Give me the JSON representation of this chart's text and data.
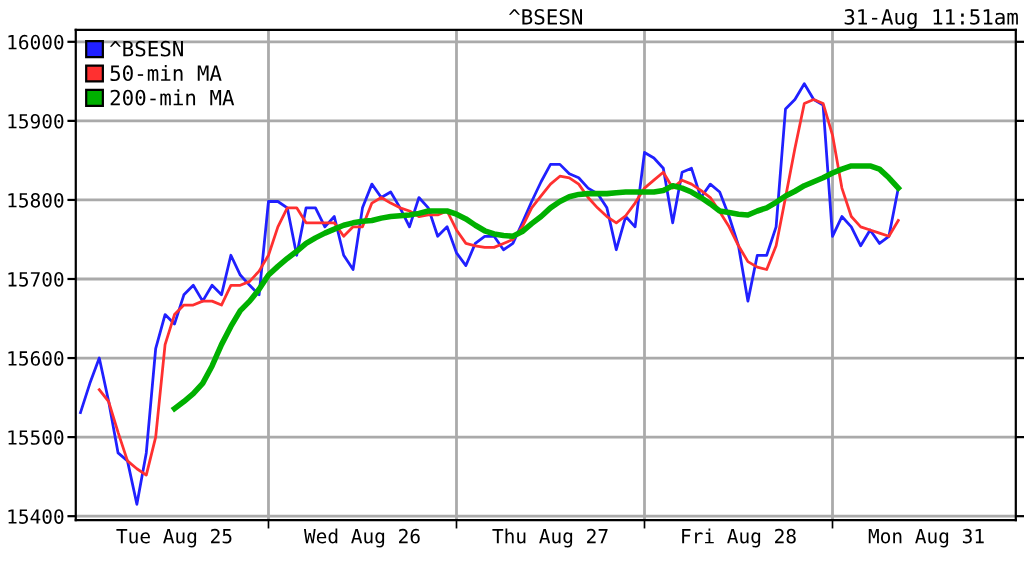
{
  "chart_data": {
    "type": "line",
    "title": "^BSESN",
    "annotations": [
      "31-Aug 11:51am"
    ],
    "categories": [
      null,
      null,
      null,
      null,
      null,
      null,
      null,
      null,
      null,
      null,
      "Tue Aug 25",
      null,
      null,
      null,
      null,
      null,
      null,
      null,
      null,
      null,
      null,
      null,
      null,
      null,
      null,
      null,
      null,
      null,
      null,
      null,
      "Wed Aug 26",
      null,
      null,
      null,
      null,
      null,
      null,
      null,
      null,
      null,
      null,
      null,
      null,
      null,
      null,
      null,
      null,
      null,
      null,
      null,
      "Thu Aug 27",
      null,
      null,
      null,
      null,
      null,
      null,
      null,
      null,
      null,
      null,
      null,
      null,
      null,
      null,
      null,
      null,
      null,
      null,
      null,
      "Fri Aug 28",
      null,
      null,
      null,
      null,
      null,
      null,
      null,
      null,
      null,
      null,
      null,
      null,
      null,
      null,
      null,
      null,
      null,
      null,
      null,
      "Mon Aug 31",
      null,
      null,
      null,
      null,
      null,
      null,
      null,
      null,
      null
    ],
    "ylim": [
      15395,
      16015
    ],
    "yticks": [
      15400,
      15500,
      15600,
      15700,
      15800,
      15900,
      16000
    ],
    "grid": true,
    "legend": "top left",
    "series": [
      {
        "name": "^BSESN",
        "color": "#2020ff",
        "values": [
          15531,
          15568,
          15600,
          15545,
          15480,
          15470,
          15415,
          15480,
          15612,
          15655,
          15643,
          15680,
          15692,
          15672,
          15692,
          15680,
          15730,
          15705,
          15692,
          15680,
          15798,
          15798,
          15790,
          15730,
          15790,
          15790,
          15766,
          15779,
          15730,
          15712,
          15790,
          15820,
          15803,
          15810,
          15790,
          15766,
          15803,
          15790,
          15754,
          15766,
          15733,
          15717,
          15745,
          15754,
          15754,
          15737,
          15745,
          15771,
          15798,
          15823,
          15845,
          15845,
          15833,
          15828,
          15815,
          15808,
          15790,
          15737,
          15779,
          15766,
          15860,
          15853,
          15840,
          15771,
          15835,
          15840,
          15803,
          15820,
          15810,
          15779,
          15742,
          15672,
          15730,
          15730,
          15766,
          15915,
          15927,
          15947,
          15927,
          15920,
          15754,
          15779,
          15766,
          15742,
          15762,
          15745,
          15754,
          15815,
          null,
          null,
          null,
          null,
          null,
          null,
          null,
          null,
          null,
          null,
          null,
          null
        ]
      },
      {
        "name": "50-min MA",
        "color": "#ff3030",
        "values": [
          null,
          null,
          15560,
          15545,
          15506,
          15470,
          15460,
          15452,
          15500,
          15617,
          15655,
          15667,
          15667,
          15672,
          15672,
          15667,
          15692,
          15692,
          15697,
          15710,
          15730,
          15766,
          15790,
          15790,
          15771,
          15771,
          15771,
          15771,
          15754,
          15766,
          15766,
          15796,
          15803,
          15796,
          15790,
          15786,
          15779,
          15781,
          15781,
          15786,
          15762,
          15745,
          15742,
          15740,
          15740,
          15745,
          15750,
          15766,
          15790,
          15805,
          15820,
          15830,
          15828,
          15820,
          15803,
          15790,
          15779,
          15771,
          15780,
          15796,
          15815,
          15825,
          15835,
          15815,
          15825,
          15820,
          15812,
          15803,
          15785,
          15766,
          15742,
          15722,
          15715,
          15712,
          15742,
          15803,
          15865,
          15922,
          15927,
          15922,
          15882,
          15815,
          15779,
          15766,
          15762,
          15758,
          15754,
          15774,
          null,
          null,
          null,
          null,
          null,
          null,
          null,
          null,
          null,
          null,
          null,
          null
        ]
      },
      {
        "name": "200-min MA",
        "color": "#00b000",
        "values": [
          null,
          null,
          null,
          null,
          null,
          null,
          null,
          null,
          null,
          null,
          15536,
          15545,
          15555,
          15568,
          15590,
          15617,
          15640,
          15660,
          15672,
          15687,
          15705,
          15716,
          15726,
          15735,
          15745,
          15752,
          15758,
          15763,
          15768,
          15771,
          15773,
          15774,
          15777,
          15779,
          15780,
          15781,
          15783,
          15786,
          15786,
          15786,
          15782,
          15776,
          15768,
          15761,
          15757,
          15755,
          15754,
          15760,
          15770,
          15779,
          15790,
          15798,
          15804,
          15807,
          15808,
          15808,
          15808,
          15809,
          15810,
          15810,
          15810,
          15810,
          15812,
          15818,
          15815,
          15810,
          15803,
          15795,
          15786,
          15784,
          15782,
          15781,
          15786,
          15790,
          15797,
          15805,
          15811,
          15818,
          15823,
          15828,
          15834,
          15839,
          15843,
          15843,
          15843,
          15839,
          15828,
          15815,
          null,
          null,
          null,
          null,
          null,
          null,
          null,
          null,
          null,
          null,
          null,
          null
        ]
      }
    ]
  }
}
